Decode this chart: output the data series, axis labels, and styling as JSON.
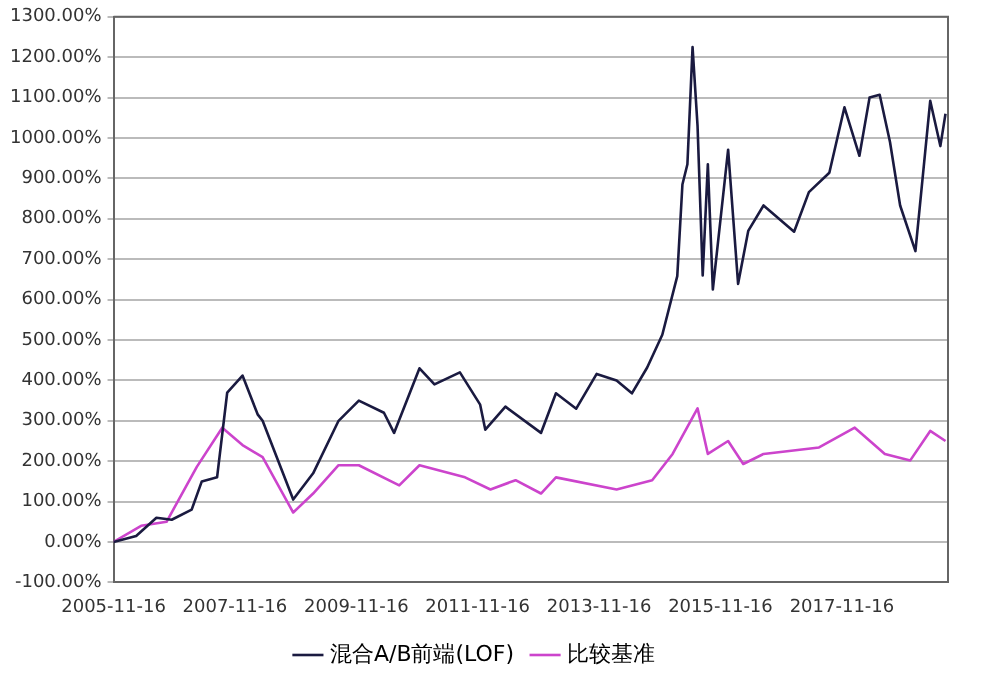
{
  "chart_data": {
    "type": "line",
    "series": [
      {
        "name": "混合A/B前端(LOF)",
        "color": "#1a1a40",
        "x": [
          "2005-11-16",
          "2006-04",
          "2006-08",
          "2006-11",
          "2007-03",
          "2007-05",
          "2007-08",
          "2007-10",
          "2008-01",
          "2008-04",
          "2008-05",
          "2008-11",
          "2009-03",
          "2009-08",
          "2009-12",
          "2010-05",
          "2010-07",
          "2010-12",
          "2011-03",
          "2011-08",
          "2011-12",
          "2012-01",
          "2012-05",
          "2012-12",
          "2013-03",
          "2013-07",
          "2013-11",
          "2014-03",
          "2014-06",
          "2014-09",
          "2014-12",
          "2015-03",
          "2015-04",
          "2015-05",
          "2015-06",
          "2015-07",
          "2015-08",
          "2015-09",
          "2015-10",
          "2016-01",
          "2016-03",
          "2016-05",
          "2016-08",
          "2017-02",
          "2017-05",
          "2017-09",
          "2017-12",
          "2018-03",
          "2018-05",
          "2018-07",
          "2018-09",
          "2018-11",
          "2019-02",
          "2019-05",
          "2019-07",
          "2019-08"
        ],
        "values": [
          0,
          15,
          60,
          55,
          80,
          150,
          160,
          370,
          412,
          316,
          300,
          105,
          170,
          300,
          350,
          320,
          270,
          430,
          390,
          420,
          340,
          278,
          335,
          270,
          368,
          330,
          416,
          400,
          368,
          432,
          513,
          658,
          885,
          935,
          1225,
          1030,
          660,
          935,
          625,
          971,
          639,
          770,
          833,
          768,
          866,
          914,
          1076,
          956,
          1100,
          1107,
          990,
          833,
          720,
          1092,
          980,
          1060
        ]
      },
      {
        "name": "比较基准",
        "color": "#cc44cc",
        "x": [
          "2005-11-16",
          "2006-05",
          "2006-10",
          "2007-04",
          "2007-09",
          "2008-01",
          "2008-05",
          "2008-11",
          "2009-03",
          "2009-08",
          "2009-12",
          "2010-08",
          "2010-12",
          "2011-09",
          "2012-02",
          "2012-07",
          "2012-12",
          "2013-03",
          "2014-03",
          "2014-10",
          "2015-02",
          "2015-07",
          "2015-09",
          "2016-01",
          "2016-04",
          "2016-08",
          "2017-07",
          "2018-02",
          "2018-08",
          "2019-01",
          "2019-05",
          "2019-08"
        ],
        "values": [
          0,
          40,
          50,
          186,
          283,
          240,
          210,
          73,
          120,
          190,
          190,
          140,
          190,
          160,
          130,
          153,
          120,
          160,
          130,
          153,
          218,
          331,
          218,
          250,
          193,
          218,
          234,
          283,
          218,
          202,
          275,
          250
        ]
      }
    ],
    "xlim": [
      "2005-11-16",
      "2019-08-16"
    ],
    "xticks": [
      "2005-11-16",
      "2007-11-16",
      "2009-11-16",
      "2011-11-16",
      "2013-11-16",
      "2015-11-16",
      "2017-11-16"
    ],
    "ylim": [
      -100,
      1300
    ],
    "yticks": [
      {
        "value": -100,
        "label": "-100.00%"
      },
      {
        "value": 0,
        "label": "0.00%"
      },
      {
        "value": 100,
        "label": "100.00%"
      },
      {
        "value": 200,
        "label": "200.00%"
      },
      {
        "value": 300,
        "label": "300.00%"
      },
      {
        "value": 400,
        "label": "400.00%"
      },
      {
        "value": 500,
        "label": "500.00%"
      },
      {
        "value": 600,
        "label": "600.00%"
      },
      {
        "value": 700,
        "label": "700.00%"
      },
      {
        "value": 800,
        "label": "800.00%"
      },
      {
        "value": 900,
        "label": "900.00%"
      },
      {
        "value": 1000,
        "label": "1000.00%"
      },
      {
        "value": 1100,
        "label": "1100.00%"
      },
      {
        "value": 1200,
        "label": "1200.00%"
      },
      {
        "value": 1300,
        "label": "1300.00%"
      }
    ],
    "grid": "y",
    "legend": "bottom",
    "marker": "none",
    "line_style": "solid"
  }
}
